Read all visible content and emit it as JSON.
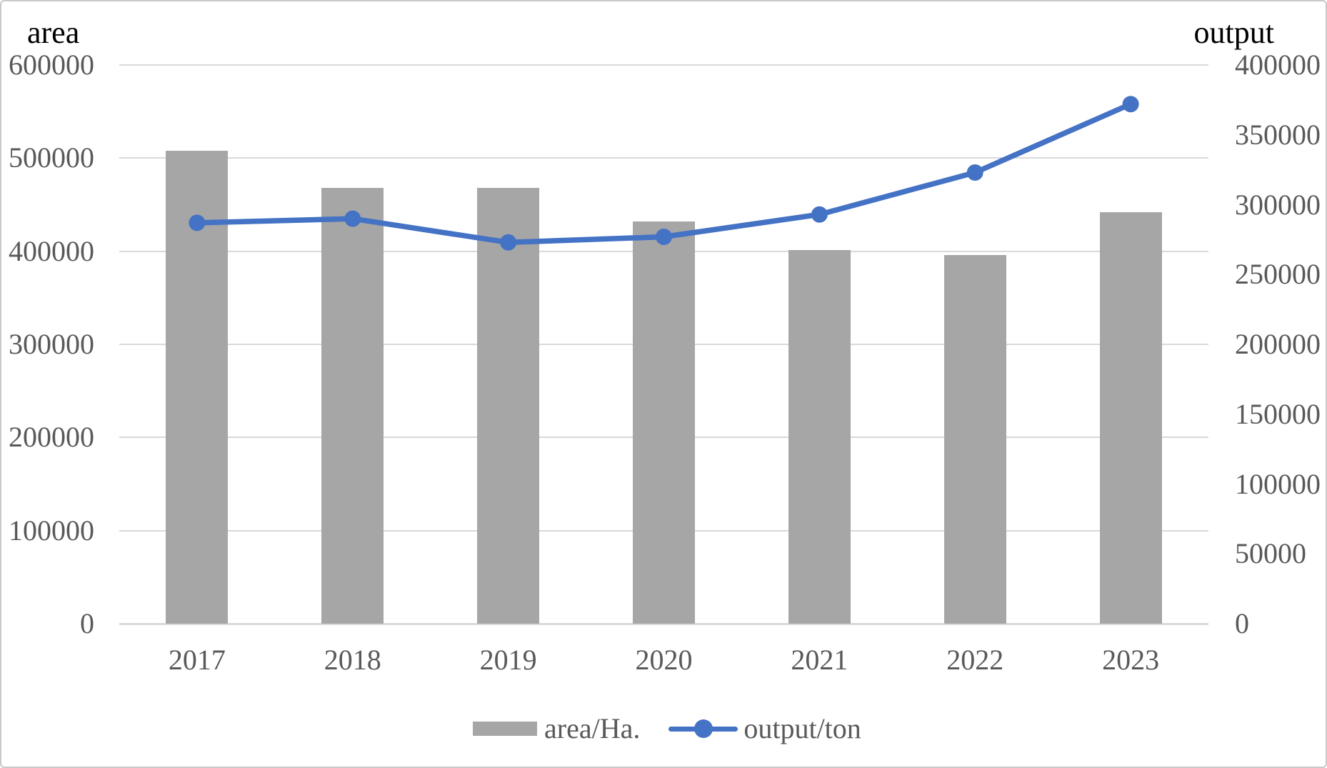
{
  "titles": {
    "left": "area",
    "right": "output"
  },
  "legend": {
    "items": [
      {
        "label": "area/Ha.",
        "marker": "bar-swatch"
      },
      {
        "label": "output/ton",
        "marker": "line-marker"
      }
    ]
  },
  "colors": {
    "bar": "#a6a6a6",
    "line": "#4472c4",
    "grid": "#d9d9d9",
    "axis_line": "#d9d9d9",
    "tick_text": "#595959",
    "title_text": "#000000",
    "border": "#c9c9c9"
  },
  "chart_data": {
    "type": "combo-bar-line",
    "categories": [
      "2017",
      "2018",
      "2019",
      "2020",
      "2021",
      "2022",
      "2023"
    ],
    "series": [
      {
        "name": "area/Ha.",
        "type": "bar",
        "axis": "left",
        "values": [
          508000,
          468000,
          468000,
          432000,
          401000,
          396000,
          442000
        ]
      },
      {
        "name": "output/ton",
        "type": "line",
        "axis": "right",
        "values": [
          287000,
          290000,
          273000,
          277000,
          293000,
          323000,
          372000
        ]
      }
    ],
    "left_axis": {
      "title": "area",
      "min": 0,
      "max": 600000,
      "step": 100000,
      "tick_labels": [
        "600000",
        "500000",
        "400000",
        "300000",
        "200000",
        "100000",
        "0"
      ]
    },
    "right_axis": {
      "title": "output",
      "min": 0,
      "max": 400000,
      "step": 50000,
      "tick_labels": [
        "400000",
        "350000",
        "300000",
        "250000",
        "200000",
        "150000",
        "100000",
        "50000",
        "0"
      ]
    },
    "grid": true,
    "legend_position": "bottom"
  }
}
